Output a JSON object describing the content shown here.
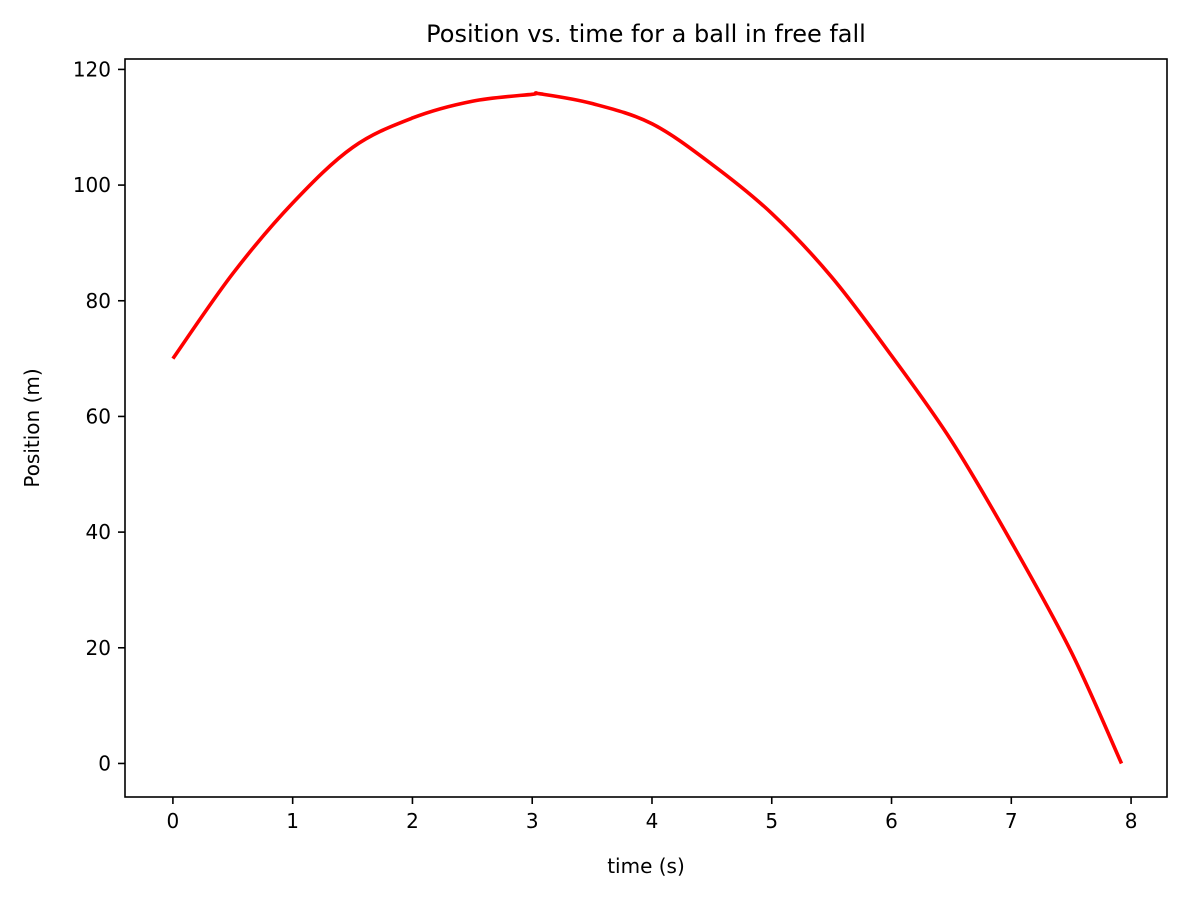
{
  "chart_data": {
    "type": "line",
    "title": "Position vs. time for a ball in free fall",
    "xlabel": "time (s)",
    "ylabel": "Position (m)",
    "xlim": [
      -0.4,
      8.3
    ],
    "ylim": [
      -5.8,
      121.8
    ],
    "xticks": [
      0,
      1,
      2,
      3,
      4,
      5,
      6,
      7,
      8
    ],
    "xtick_labels": [
      "0",
      "1",
      "2",
      "3",
      "4",
      "5",
      "6",
      "7",
      "8"
    ],
    "yticks": [
      0,
      20,
      40,
      60,
      80,
      100,
      120
    ],
    "ytick_labels": [
      "0",
      "20",
      "40",
      "60",
      "80",
      "100",
      "120"
    ],
    "grid": false,
    "series": [
      {
        "color": "#ff0000",
        "x": [
          0,
          0.5,
          1.0,
          1.5,
          2.0,
          2.5,
          3.0,
          3.06,
          3.5,
          4.0,
          4.5,
          5.0,
          5.5,
          6.0,
          6.5,
          7.0,
          7.5,
          7.92
        ],
        "y": [
          70.0,
          84.7,
          96.9,
          106.5,
          111.6,
          114.5,
          115.7,
          115.8,
          114.1,
          110.6,
          103.6,
          95.1,
          84.1,
          70.5,
          55.8,
          38.3,
          19.3,
          0.0
        ]
      }
    ]
  }
}
